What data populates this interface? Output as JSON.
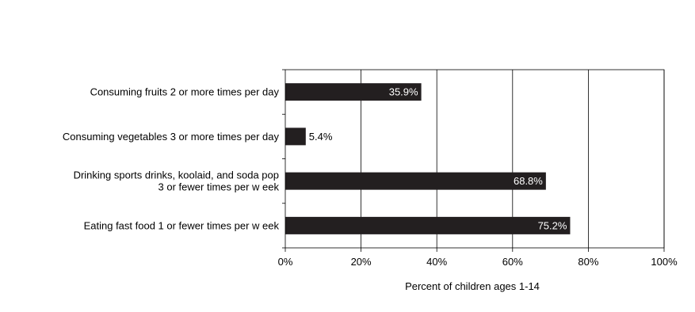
{
  "chart_data": {
    "type": "bar",
    "orientation": "horizontal",
    "categories": [
      [
        "Consuming fruits 2 or more times per day"
      ],
      [
        "Consuming vegetables 3 or more times per day"
      ],
      [
        "Drinking sports drinks, koolaid, and soda pop",
        "3 or fewer times per w eek"
      ],
      [
        "Eating fast food 1 or fewer times per w eek"
      ]
    ],
    "values": [
      35.9,
      5.4,
      68.8,
      75.2
    ],
    "data_labels": [
      "35.9%",
      "5.4%",
      "68.8%",
      "75.2%"
    ],
    "xlabel": "Percent of children ages 1-14",
    "ylabel": "",
    "title": "",
    "xlim": [
      0,
      100
    ],
    "xticks": [
      0,
      20,
      40,
      60,
      80,
      100
    ],
    "xtick_labels": [
      "0%",
      "20%",
      "40%",
      "60%",
      "80%",
      "100%"
    ],
    "grid": "vertical",
    "legend": "none",
    "colors": {
      "bar": "#231f20",
      "grid": "#000000",
      "axis": "#000000"
    }
  }
}
